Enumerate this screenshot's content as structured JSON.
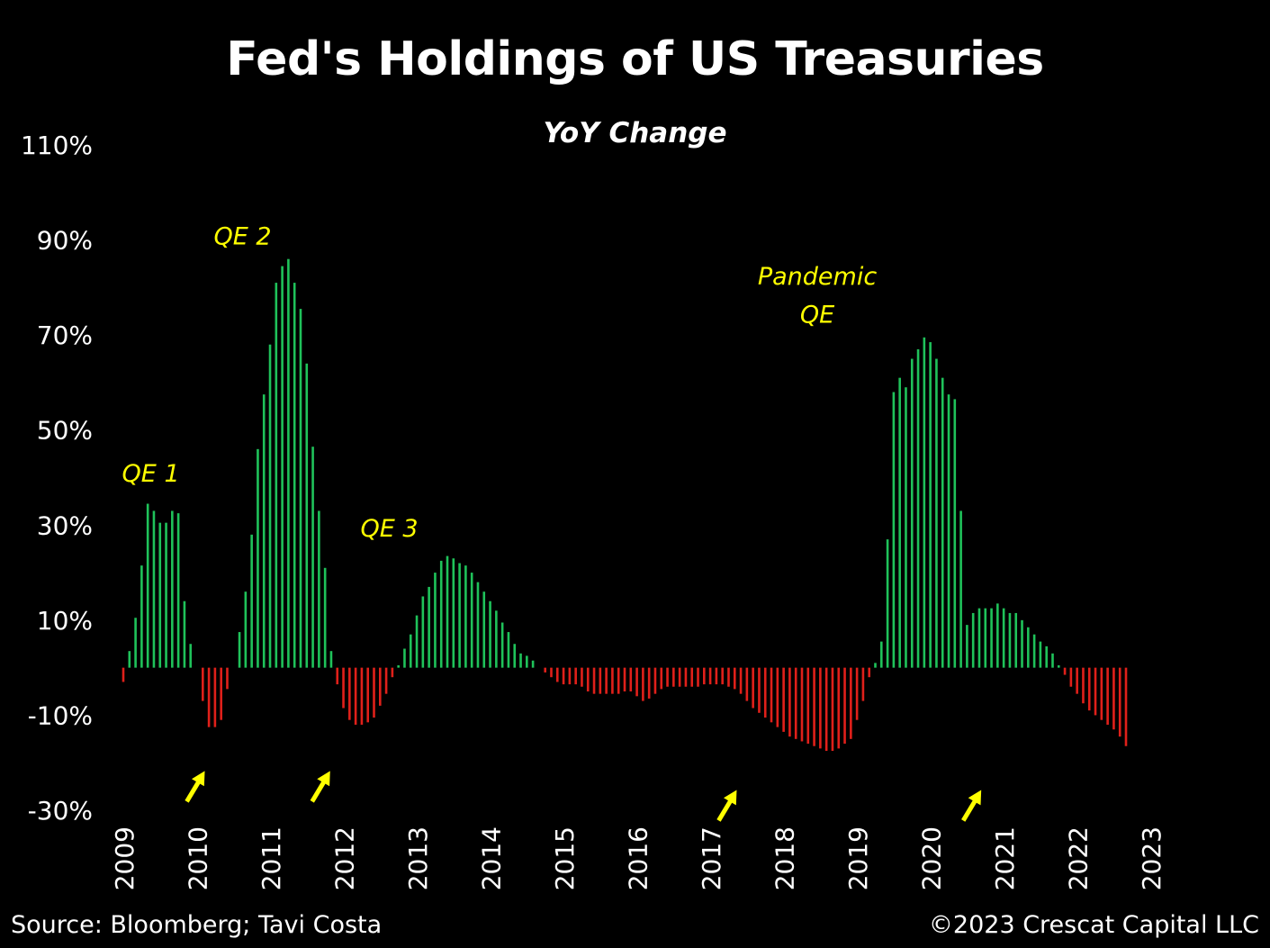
{
  "title": "Fed's Holdings of US Treasuries",
  "subtitle": "YoY Change",
  "source": "Source: Bloomberg; Tavi Costa",
  "copyright": "©2023 Crescat Capital LLC",
  "colors": {
    "positive": "#1fc25a",
    "negative": "#e0201a",
    "annotation": "#ffff00",
    "arrow": "#ffff00",
    "background": "#000000"
  },
  "chart_data": {
    "type": "bar",
    "title": "Fed's Holdings of US Treasuries",
    "subtitle": "YoY Change",
    "xlabel": "",
    "ylabel": "",
    "ylim": [
      -30,
      110
    ],
    "y_ticks": [
      -30,
      -10,
      10,
      30,
      50,
      70,
      90,
      110
    ],
    "y_tick_labels": [
      "-30%",
      "-10%",
      "10%",
      "30%",
      "50%",
      "70%",
      "90%",
      "110%"
    ],
    "x_start_year": 2009,
    "x_tick_labels": [
      "2009",
      "2010",
      "2011",
      "2012",
      "2013",
      "2014",
      "2015",
      "2016",
      "2017",
      "2018",
      "2019",
      "2020",
      "2021",
      "2022",
      "2023"
    ],
    "grid": false,
    "values": [
      -3,
      3.5,
      10.5,
      21.5,
      34.5,
      33,
      30.5,
      30.5,
      33,
      32.5,
      14,
      5,
      0,
      -7,
      -12.5,
      -12.5,
      -11,
      -4.5,
      0,
      7.5,
      16,
      28,
      46,
      57.5,
      68,
      81,
      84.5,
      86,
      81,
      75.5,
      64,
      46.5,
      33,
      21,
      3.5,
      -3.5,
      -8.5,
      -11,
      -12,
      -12,
      -11.5,
      -10.5,
      -8,
      -5.5,
      -2,
      0.5,
      4,
      7,
      11,
      15,
      17,
      20,
      22.5,
      23.5,
      23,
      22,
      21.5,
      20,
      18,
      16,
      14,
      12,
      9.5,
      7.5,
      5,
      3,
      2.5,
      1.5,
      0,
      -1,
      -2,
      -3,
      -3.5,
      -3.5,
      -3.5,
      -4,
      -5,
      -5.5,
      -5.5,
      -5.5,
      -5.5,
      -5.5,
      -5,
      -5,
      -6,
      -7,
      -6.5,
      -5.5,
      -4.5,
      -4,
      -4,
      -4,
      -4,
      -4,
      -4,
      -3.5,
      -3.5,
      -3.5,
      -3.5,
      -4,
      -4.5,
      -5.5,
      -7,
      -8.5,
      -9.5,
      -10.5,
      -11.5,
      -12.5,
      -13.5,
      -14.5,
      -15,
      -15.5,
      -16,
      -16.5,
      -17,
      -17.5,
      -17.5,
      -17,
      -16,
      -15,
      -11,
      -7,
      -2,
      1,
      5.5,
      27,
      58,
      61,
      59,
      65,
      67,
      69.5,
      68.5,
      65,
      61,
      57.5,
      56.5,
      33,
      9,
      11.5,
      12.5,
      12.5,
      12.5,
      13.5,
      12.5,
      11.5,
      11.5,
      10,
      8.5,
      7,
      5.5,
      4.5,
      3,
      0.5,
      -1.5,
      -4,
      -5.5,
      -7.5,
      -9,
      -10,
      -11,
      -12,
      -13,
      -14.5,
      -16.5
    ],
    "annotations": [
      {
        "text": "QE 1",
        "x_index": 4.5,
        "y": 41
      },
      {
        "text": "QE 2",
        "x_index": 19.5,
        "y": 91
      },
      {
        "text": "QE 3",
        "x_index": 43.5,
        "y": 29.5
      },
      {
        "text": "Pandemic",
        "x_index": 113.5,
        "y": 82.5
      },
      {
        "text": "QE",
        "x_index": 113.5,
        "y": 74.5
      }
    ],
    "arrows": [
      {
        "x_index": 12,
        "y": -24
      },
      {
        "x_index": 32.5,
        "y": -24
      },
      {
        "x_index": 99,
        "y": -28
      },
      {
        "x_index": 139,
        "y": -28
      }
    ]
  }
}
